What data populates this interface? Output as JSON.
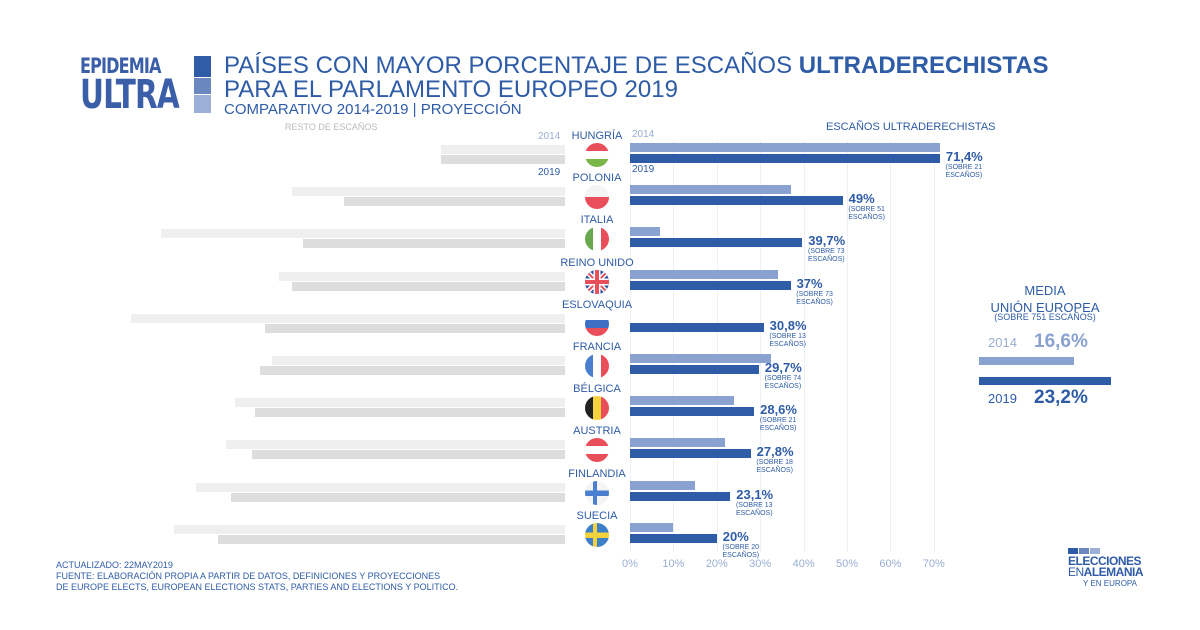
{
  "logo": {
    "line1": "EPIDEMIA",
    "line2": "ULTRA"
  },
  "header": {
    "title_line1_regular": "PAÍSES CON MAYOR PORCENTAJE DE ESCAÑOS ",
    "title_line1_bold": "ULTRADERECHISTAS",
    "title_line2": "PARA EL PARLAMENTO EUROPEO 2019",
    "subtitle": "COMPARATIVO 2014-2019 | PROYECCIÓN"
  },
  "labels": {
    "resto": "RESTO DE ESCAÑOS",
    "ultra": "ESCAÑOS ULTRADERECHISTAS",
    "year_2014": "2014",
    "year_2019": "2019"
  },
  "colors": {
    "bar_2014": "#8aa2cf",
    "bar_2019": "#2f5ca6",
    "rest_2014": "#efefef",
    "rest_2019": "#dddddd"
  },
  "chart_data": {
    "type": "bar",
    "title": "PAÍSES CON MAYOR PORCENTAJE DE ESCAÑOS ULTRADERECHISTAS PARA EL PARLAMENTO EUROPEO 2019",
    "subtitle": "COMPARATIVO 2014-2019 | PROYECCIÓN",
    "xlabel": "ESCAÑOS ULTRADERECHISTAS",
    "xlim": [
      0,
      70
    ],
    "xticks": [
      "0%",
      "10%",
      "20%",
      "30%",
      "40%",
      "50%",
      "60%",
      "70%"
    ],
    "categories": [
      "HUNGRÍA",
      "POLONIA",
      "ITALIA",
      "REINO UNIDO",
      "ESLOVAQUIA",
      "FRANCIA",
      "BÉLGICA",
      "AUSTRIA",
      "FINLANDIA",
      "SUECIA"
    ],
    "series": [
      {
        "name": "2014",
        "values": [
          71.4,
          37,
          7,
          34,
          0,
          32.5,
          24,
          22,
          15,
          10
        ]
      },
      {
        "name": "2019",
        "values": [
          71.4,
          49,
          39.7,
          37,
          30.8,
          29.7,
          28.6,
          27.8,
          23.1,
          20
        ]
      }
    ],
    "value_labels": [
      "71,4%",
      "49%",
      "39,7%",
      "37%",
      "30,8%",
      "29,7%",
      "28,6%",
      "27,8%",
      "23,1%",
      "20%"
    ],
    "seat_notes": [
      [
        "(SOBRE 21",
        "ESCAÑOS)"
      ],
      [
        "(SOBRE 51",
        "ESCAÑOS)"
      ],
      [
        "(SOBRE 73",
        "ESCAÑOS)"
      ],
      [
        "(SOBRE 73",
        "ESCAÑOS)"
      ],
      [
        "(SOBRE 13",
        "ESCAÑOS)"
      ],
      [
        "(SOBRE 74",
        "ESCAÑOS)"
      ],
      [
        "(SOBRE 21",
        "ESCAÑOS)"
      ],
      [
        "(SOBRE 18",
        "ESCAÑOS)"
      ],
      [
        "(SOBRE 13",
        "ESCAÑOS)"
      ],
      [
        "(SOBRE 20",
        "ESCAÑOS)"
      ]
    ],
    "rest_series_note": "RESTO DE ESCAÑOS = 100% - porcentaje ultraderechista",
    "eu_average": {
      "title1": "MEDIA",
      "title2": "UNIÓN EUROPEA",
      "note": "(SOBRE 751 ESCAÑOS)",
      "y2014": "2014",
      "v2014": 16.6,
      "l2014": "16,6%",
      "y2019": "2019",
      "v2019": 23.2,
      "l2019": "23,2%"
    }
  },
  "footer": {
    "line1": "ACTUALIZADO: 22MAY2019",
    "line2": "FUENTE: ELABORACIÓN PROPIA A PARTIR DE DATOS, DEFINICIONES Y PROYECCIONES",
    "line3": "DE EUROPE ELECTS, EUROPEAN ELECTIONS STATS, PARTIES AND ELECTIONS Y POLITICO."
  },
  "brand": {
    "line1": "ELECCIONES",
    "line2a": "EN",
    "line2b": "ALEMANIA",
    "line3": "Y EN EUROPA"
  }
}
